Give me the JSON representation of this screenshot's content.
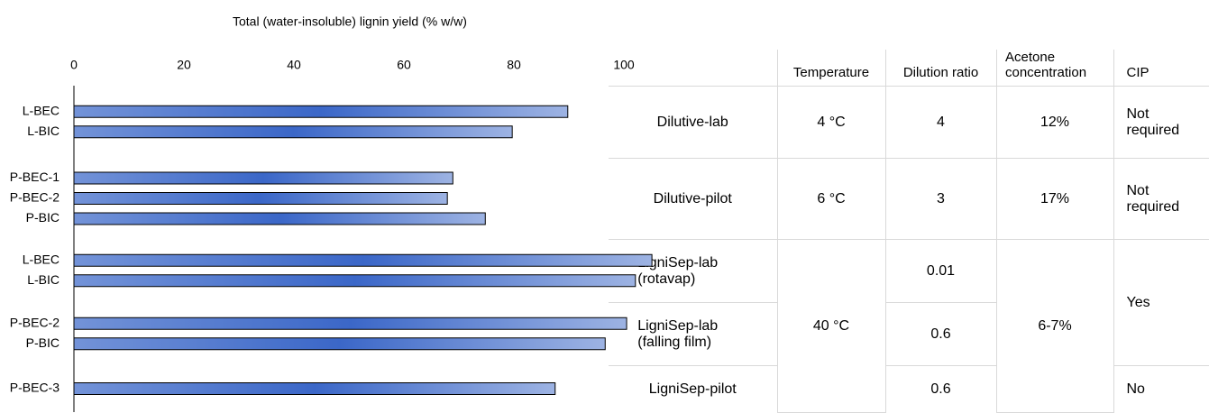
{
  "chart_data": {
    "type": "bar",
    "orientation": "horizontal",
    "title": "Total (water-insoluble) lignin yield (% w/w)",
    "groups": [
      {
        "categories": [
          "L-BEC",
          "L-BIC"
        ],
        "values": [
          89.8,
          79.7
        ]
      },
      {
        "categories": [
          "P-BEC-1",
          "P-BEC-2",
          "P-BIC"
        ],
        "values": [
          68.9,
          67.9,
          74.8
        ]
      },
      {
        "categories": [
          "L-BEC",
          "L-BIC"
        ],
        "values": [
          105.1,
          102.1
        ]
      },
      {
        "categories": [
          "P-BEC-2",
          "P-BIC"
        ],
        "values": [
          100.5,
          96.6
        ]
      },
      {
        "categories": [
          "P-BEC-3"
        ],
        "values": [
          87.5
        ]
      }
    ],
    "gradient": [
      "#7393d8",
      "#3b67c8",
      "#9db3e3"
    ],
    "xlim": [
      0,
      100
    ],
    "xticks": [
      0,
      20,
      40,
      60,
      80,
      100
    ],
    "grid": false
  },
  "table": {
    "header": [
      "Temperature",
      "Dilution ratio",
      "Acetone concentration",
      "CIP"
    ],
    "rows": [
      [
        "Dilutive-lab",
        "4 °C",
        "4",
        "12%",
        "Not required"
      ],
      [
        "Dilutive-pilot",
        "6 °C",
        "3",
        "17%",
        "Not required"
      ],
      [
        "LigniSep-lab (rotavap)",
        "40 °C",
        "0.01",
        "6-7%",
        "Yes"
      ],
      [
        "LigniSep-lab (falling film)",
        "0.6"
      ],
      [
        "LigniSep-pilot",
        "0.6",
        "No"
      ]
    ]
  }
}
